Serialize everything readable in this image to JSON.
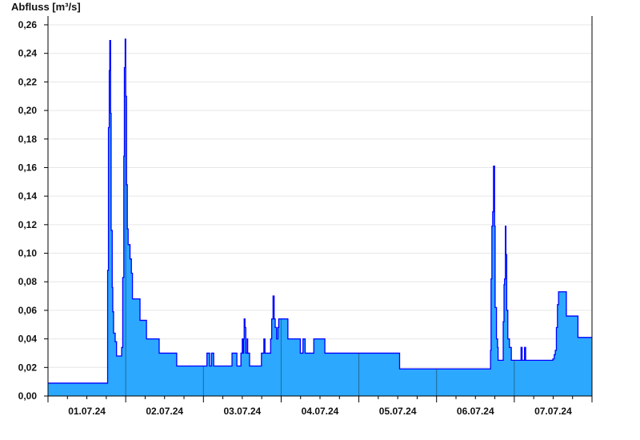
{
  "chart_data": {
    "type": "area",
    "title": "",
    "xlabel": "",
    "ylabel": "Abfluss [m³/s]",
    "ylim": [
      0,
      0.26
    ],
    "xlim": [
      "01.07.24 00:00",
      "08.07.24 00:00"
    ],
    "yticks": [
      "0,00",
      "0,02",
      "0,04",
      "0,06",
      "0,08",
      "0,10",
      "0,12",
      "0,14",
      "0,16",
      "0,18",
      "0,20",
      "0,22",
      "0,24",
      "0,26"
    ],
    "xtick_labels": [
      "01.07.24",
      "02.07.24",
      "03.07.24",
      "04.07.24",
      "05.07.24",
      "06.07.24",
      "07.07.24"
    ],
    "grid": true,
    "step": true,
    "colors": {
      "fill": "#2ca8ff",
      "line": "#0000ff",
      "day_line": "#1f6a96",
      "grid": "#e6e6e6"
    },
    "points": [
      [
        "01.07.24 00:00",
        0.009
      ],
      [
        "01.07.24 18:25",
        0.088
      ],
      [
        "01.07.24 18:40",
        0.188
      ],
      [
        "01.07.24 18:55",
        0.228
      ],
      [
        "01.07.24 19:05",
        0.249
      ],
      [
        "01.07.24 19:20",
        0.198
      ],
      [
        "01.07.24 19:30",
        0.116
      ],
      [
        "01.07.24 19:50",
        0.076
      ],
      [
        "01.07.24 20:00",
        0.059
      ],
      [
        "01.07.24 20:15",
        0.044
      ],
      [
        "01.07.24 20:45",
        0.038
      ],
      [
        "01.07.24 21:10",
        0.028
      ],
      [
        "01.07.24 22:45",
        0.034
      ],
      [
        "01.07.24 23:05",
        0.083
      ],
      [
        "01.07.24 23:25",
        0.168
      ],
      [
        "01.07.24 23:35",
        0.23
      ],
      [
        "01.07.24 23:50",
        0.25
      ],
      [
        "02.07.24 00:00",
        0.21
      ],
      [
        "02.07.24 00:15",
        0.148
      ],
      [
        "02.07.24 00:30",
        0.117
      ],
      [
        "02.07.24 00:45",
        0.106
      ],
      [
        "02.07.24 01:20",
        0.096
      ],
      [
        "02.07.24 01:45",
        0.086
      ],
      [
        "02.07.24 02:05",
        0.068
      ],
      [
        "02.07.24 04:25",
        0.053
      ],
      [
        "02.07.24 06:25",
        0.04
      ],
      [
        "02.07.24 10:20",
        0.03
      ],
      [
        "02.07.24 15:45",
        0.021
      ],
      [
        "03.07.24 01:05",
        0.03
      ],
      [
        "03.07.24 01:55",
        0.021
      ],
      [
        "03.07.24 02:30",
        0.03
      ],
      [
        "03.07.24 03:10",
        0.021
      ],
      [
        "03.07.24 08:50",
        0.03
      ],
      [
        "03.07.24 10:20",
        0.021
      ],
      [
        "03.07.24 11:35",
        0.03
      ],
      [
        "03.07.24 12:00",
        0.04
      ],
      [
        "03.07.24 12:15",
        0.03
      ],
      [
        "03.07.24 12:25",
        0.04
      ],
      [
        "03.07.24 12:35",
        0.054
      ],
      [
        "03.07.24 12:50",
        0.048
      ],
      [
        "03.07.24 13:05",
        0.03
      ],
      [
        "03.07.24 13:30",
        0.04
      ],
      [
        "03.07.24 13:40",
        0.03
      ],
      [
        "03.07.24 14:15",
        0.021
      ],
      [
        "03.07.24 17:55",
        0.03
      ],
      [
        "03.07.24 18:40",
        0.04
      ],
      [
        "03.07.24 19:00",
        0.03
      ],
      [
        "03.07.24 20:45",
        0.04
      ],
      [
        "03.07.24 21:05",
        0.054
      ],
      [
        "03.07.24 21:30",
        0.07
      ],
      [
        "03.07.24 21:50",
        0.054
      ],
      [
        "03.07.24 22:10",
        0.048
      ],
      [
        "03.07.24 22:35",
        0.04
      ],
      [
        "03.07.24 23:00",
        0.048
      ],
      [
        "03.07.24 23:15",
        0.054
      ],
      [
        "04.07.24 02:05",
        0.04
      ],
      [
        "04.07.24 05:55",
        0.03
      ],
      [
        "04.07.24 06:45",
        0.04
      ],
      [
        "04.07.24 07:25",
        0.03
      ],
      [
        "04.07.24 10:05",
        0.04
      ],
      [
        "04.07.24 13:30",
        0.03
      ],
      [
        "05.07.24 12:35",
        0.019
      ],
      [
        "06.07.24 16:35",
        0.019
      ],
      [
        "06.07.24 16:40",
        0.032
      ],
      [
        "06.07.24 16:50",
        0.082
      ],
      [
        "06.07.24 17:05",
        0.119
      ],
      [
        "06.07.24 17:20",
        0.129
      ],
      [
        "06.07.24 17:35",
        0.161
      ],
      [
        "06.07.24 17:55",
        0.119
      ],
      [
        "06.07.24 18:05",
        0.062
      ],
      [
        "06.07.24 18:30",
        0.04
      ],
      [
        "06.07.24 18:50",
        0.034
      ],
      [
        "06.07.24 19:00",
        0.025
      ],
      [
        "06.07.24 20:35",
        0.052
      ],
      [
        "06.07.24 20:50",
        0.078
      ],
      [
        "06.07.24 21:00",
        0.082
      ],
      [
        "06.07.24 21:15",
        0.119
      ],
      [
        "06.07.24 21:25",
        0.099
      ],
      [
        "06.07.24 21:40",
        0.06
      ],
      [
        "06.07.24 22:00",
        0.04
      ],
      [
        "06.07.24 22:30",
        0.034
      ],
      [
        "06.07.24 23:05",
        0.025
      ],
      [
        "07.07.24 02:05",
        0.034
      ],
      [
        "07.07.24 02:25",
        0.025
      ],
      [
        "07.07.24 03:10",
        0.034
      ],
      [
        "07.07.24 03:30",
        0.025
      ],
      [
        "07.07.24 11:55",
        0.026
      ],
      [
        "07.07.24 12:20",
        0.029
      ],
      [
        "07.07.24 12:40",
        0.032
      ],
      [
        "07.07.24 13:00",
        0.048
      ],
      [
        "07.07.24 13:20",
        0.064
      ],
      [
        "07.07.24 13:40",
        0.073
      ],
      [
        "07.07.24 16:05",
        0.056
      ],
      [
        "07.07.24 19:40",
        0.041
      ],
      [
        "08.07.24 00:00",
        0.041
      ]
    ]
  }
}
